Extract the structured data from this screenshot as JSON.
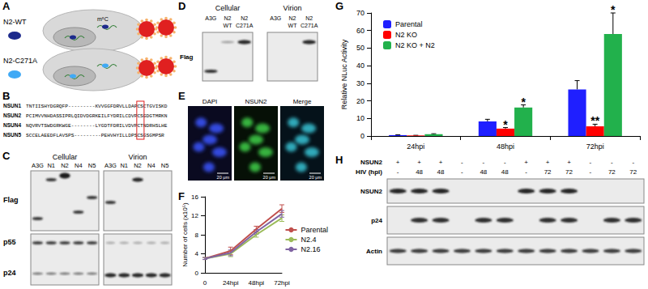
{
  "panel_labels": [
    "A",
    "B",
    "C",
    "D",
    "E",
    "F",
    "G",
    "H"
  ],
  "panel_A": {
    "constructs": [
      "N2-WT",
      "N2-C271A"
    ],
    "modification": "m⁵C"
  },
  "panel_B": {
    "rows": [
      {
        "name": "NSUN1",
        "sequence": "TNTIISHYDGRQFP---------KVVGGFDRVLLDAPCSCTGVISKD"
      },
      {
        "name": "NSUN2",
        "sequence": "PCIMVVNHDASSIPRLQIDVDGRKEILFYDRILCDVPCSGDGTMRKN"
      },
      {
        "name": "NSUN4",
        "sequence": "NQVRVTSWDGRKWGE--------LYGDTFDRILVDVPCTNDRHSLHE"
      },
      {
        "name": "NSUN5",
        "sequence": "SCCELAEEDFLAVSPS---------PEHVHYILLDPSCSGSGMPSR"
      }
    ]
  },
  "panel_C": {
    "groups": [
      "Cellular",
      "Virion"
    ],
    "lanes": [
      "A3G",
      "N1",
      "N2",
      "N4",
      "N5"
    ],
    "rows": [
      "Flag",
      "p55",
      "p24"
    ]
  },
  "panel_D": {
    "groups": [
      "Cellular",
      "Virion"
    ],
    "lanes": [
      "A3G",
      "N2 WT",
      "N2 C271A"
    ],
    "rows": [
      "Flag"
    ]
  },
  "panel_E": {
    "channels": [
      "DAPI",
      "NSUN2",
      "Merge"
    ],
    "scale_bar": "20 μm"
  },
  "panel_H": {
    "conditions": [
      {
        "label": "NSUN2",
        "lanes": [
          "+",
          "+",
          "+",
          "-",
          "-",
          "-",
          "+",
          "+",
          "+",
          "-",
          "-",
          "-"
        ]
      },
      {
        "label": "HIV (hpi)",
        "lanes": [
          "-",
          "48",
          "48",
          "-",
          "48",
          "48",
          "-",
          "72",
          "72",
          "-",
          "72",
          "72"
        ]
      }
    ],
    "rows": [
      "NSUN2",
      "p24",
      "Actin"
    ]
  },
  "chart_data": [
    {
      "type": "line",
      "categories": [
        "0",
        "24hpi",
        "48hpi",
        "72hpi"
      ],
      "ylabel": "Number of cells (x10⁵)",
      "ylim": [
        0,
        16
      ],
      "yticks": [
        0,
        4,
        8,
        12,
        16
      ],
      "grid": false,
      "legend": "right",
      "series": [
        {
          "name": "Parental",
          "color": "#c0504d",
          "values": [
            3,
            4.6,
            9.2,
            13.5
          ],
          "errors": [
            0.2,
            0.8,
            0.6,
            0.8
          ]
        },
        {
          "name": "N2.4",
          "color": "#9bbb59",
          "values": [
            3,
            4.0,
            8.0,
            11.5
          ],
          "errors": [
            0.2,
            0.6,
            0.5,
            0.7
          ]
        },
        {
          "name": "N2.16",
          "color": "#8064a2",
          "values": [
            3,
            4.2,
            8.6,
            12.4
          ],
          "errors": [
            0.2,
            0.6,
            0.5,
            0.7
          ]
        }
      ]
    },
    {
      "type": "bar",
      "categories": [
        "24hpi",
        "48hpi",
        "72hpi"
      ],
      "ylabel": "Relative NLuc Activity",
      "ylim": [
        0,
        70
      ],
      "yticks": [
        0,
        10,
        20,
        30,
        40,
        50,
        60,
        70
      ],
      "grid": false,
      "legend": "upper left",
      "series": [
        {
          "name": "Parental",
          "color": "#1f1fff",
          "values": [
            0.5,
            8.3,
            26.5
          ],
          "errors": [
            0.2,
            1.2,
            5
          ]
        },
        {
          "name": "N2 KO",
          "color": "#ff0000",
          "values": [
            0.3,
            4.2,
            5.5
          ],
          "errors": [
            0.1,
            0.6,
            1.2
          ]
        },
        {
          "name": "N2 KO + N2",
          "color": "#22b14c",
          "values": [
            1.0,
            16.2,
            58
          ],
          "errors": [
            0.3,
            1.5,
            12
          ]
        }
      ],
      "annotations": [
        {
          "text": "*",
          "series": "N2 KO",
          "category": "48hpi"
        },
        {
          "text": "*",
          "series": "N2 KO + N2",
          "category": "48hpi"
        },
        {
          "text": "**",
          "series": "N2 KO",
          "category": "72hpi"
        },
        {
          "text": "*",
          "series": "N2 KO + N2",
          "category": "72hpi"
        }
      ]
    }
  ]
}
